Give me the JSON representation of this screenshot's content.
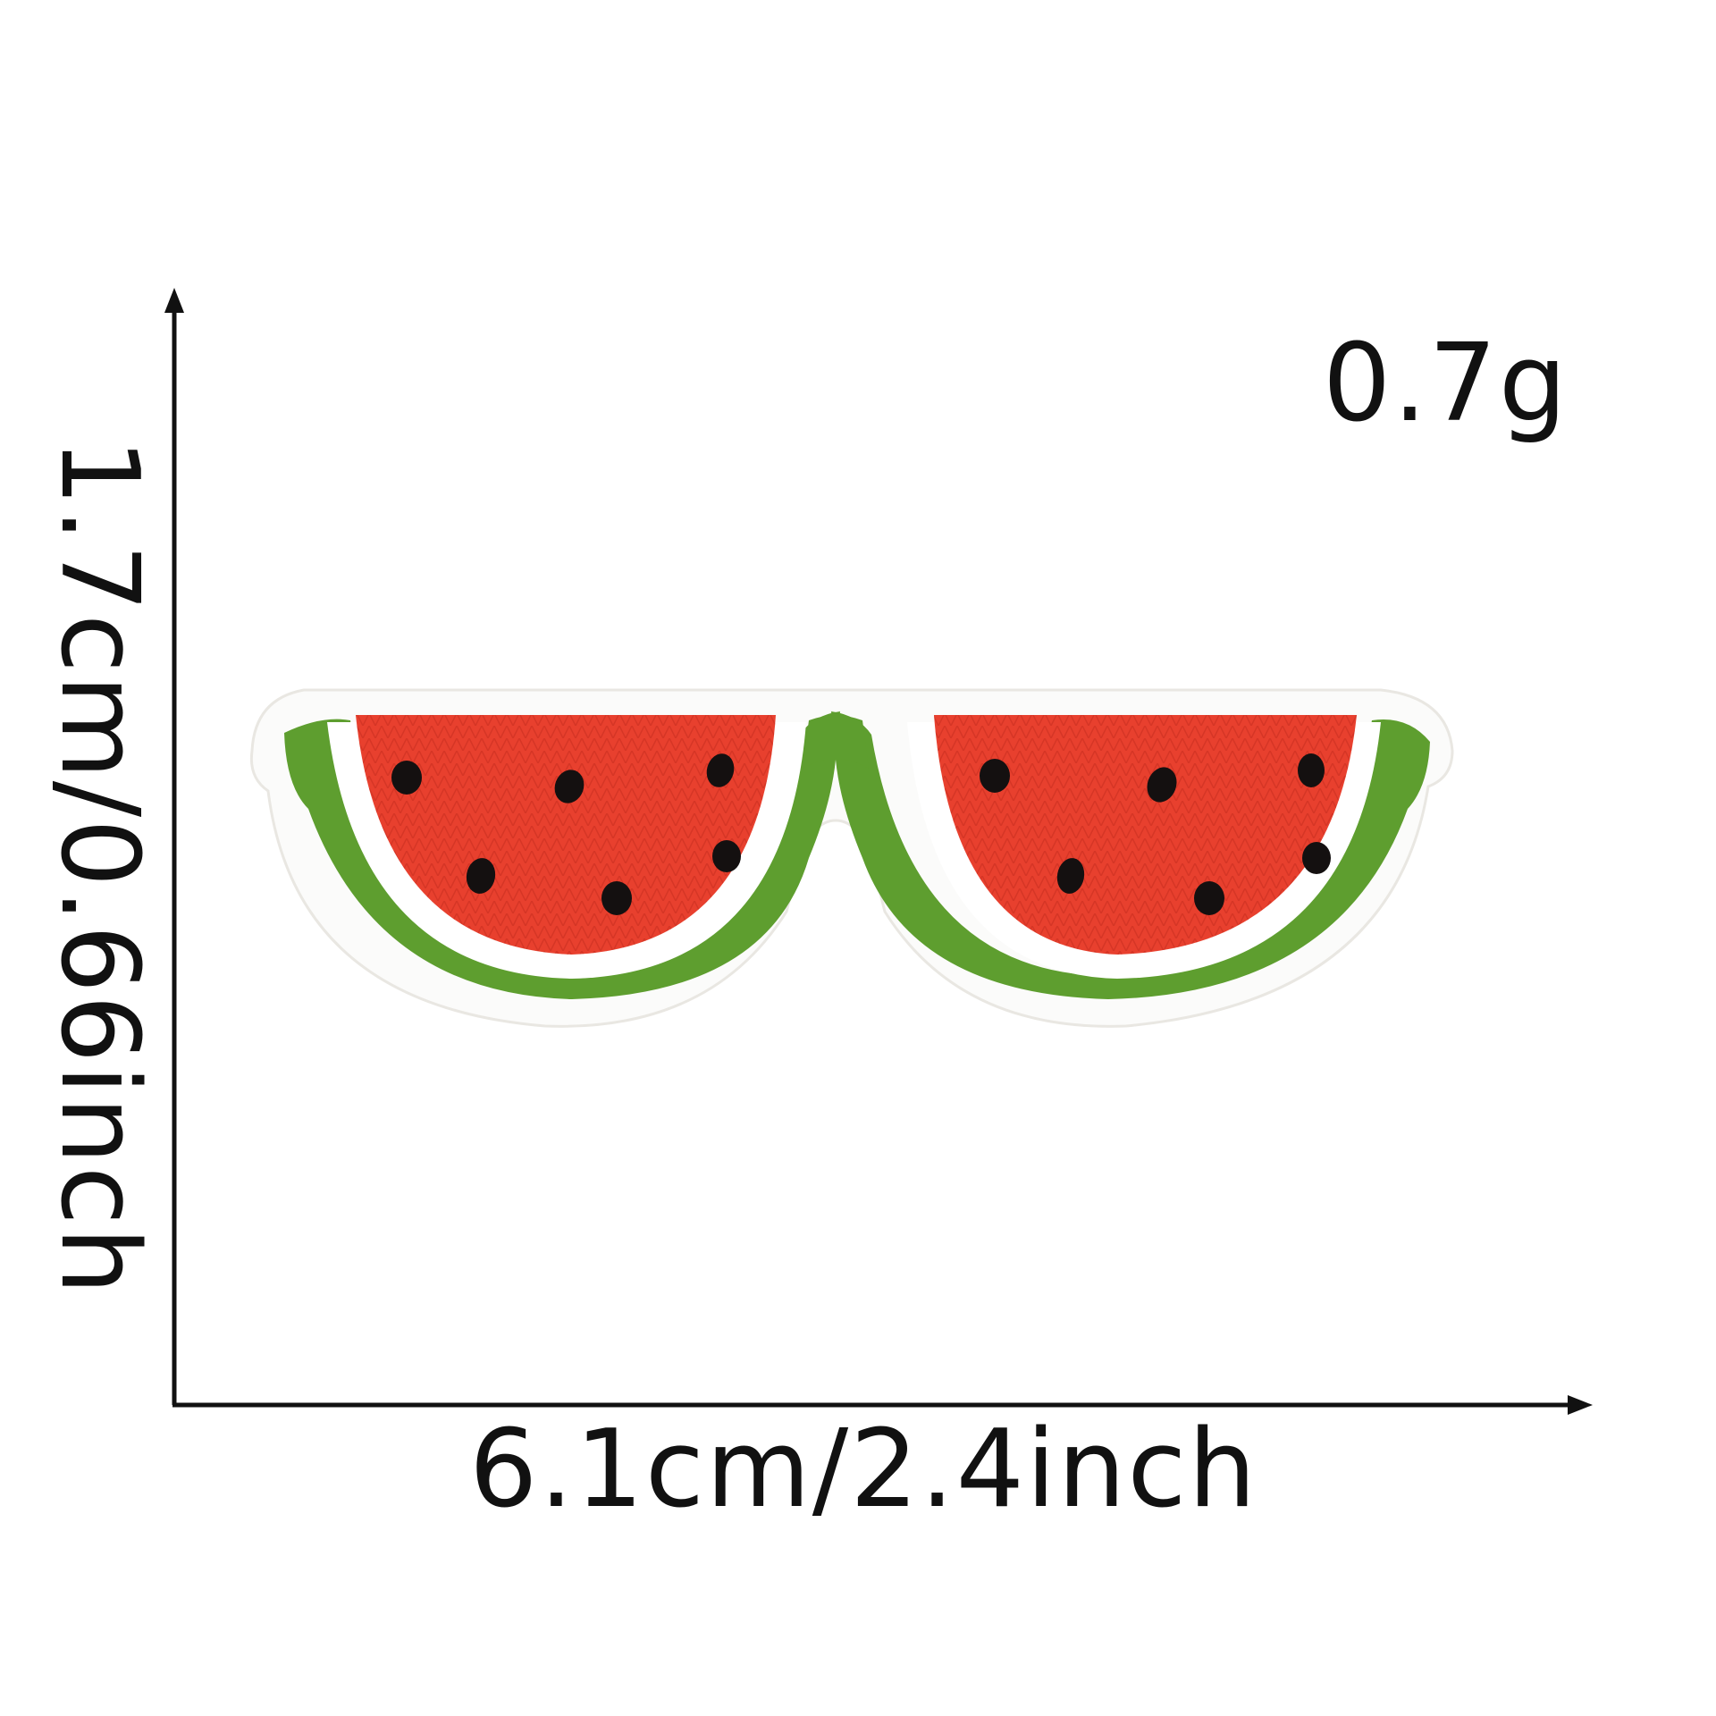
{
  "labels": {
    "weight": "0.7g",
    "width": "6.1cm/2.4inch",
    "height": "1.7cm/0.66inch"
  },
  "product": {
    "name_icon": "watermelon-sunglasses-patch",
    "colors": {
      "flesh": "#e8402e",
      "rind": "#5e9e2f",
      "pith": "#ffffff",
      "seed": "#141010",
      "border": "#ffffff"
    }
  },
  "axes_color": "#111111"
}
